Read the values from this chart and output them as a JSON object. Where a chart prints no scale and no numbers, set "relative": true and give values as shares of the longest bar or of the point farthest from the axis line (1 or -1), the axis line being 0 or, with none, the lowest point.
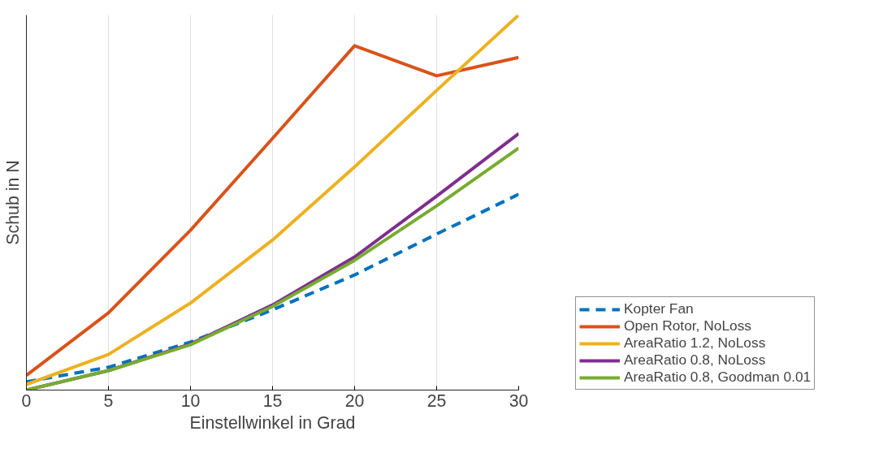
{
  "chart_data": {
    "type": "line",
    "xlabel": "Einstellwinkel in Grad",
    "ylabel": "Schub in N",
    "relative": true,
    "xlim": [
      0,
      30
    ],
    "xticks": [
      0,
      5,
      10,
      15,
      20,
      25,
      30
    ],
    "grid": "x",
    "legend": "right",
    "tick_labels": "x",
    "x": [
      0,
      5,
      10,
      15,
      20,
      25,
      30
    ],
    "series": [
      {
        "name": "Kopter Fan",
        "color": "#0072bd",
        "line_style": "dashed",
        "values": [
          0.022,
          0.061,
          0.128,
          0.214,
          0.307,
          0.416,
          0.522
        ]
      },
      {
        "name": "Open Rotor, NoLoss",
        "color": "#d95319",
        "line_style": "solid",
        "values": [
          0.039,
          0.206,
          0.426,
          0.671,
          0.918,
          0.838,
          0.887
        ]
      },
      {
        "name": "AreaRatio 1.2, NoLoss",
        "color": "#edb120",
        "line_style": "solid",
        "values": [
          0.015,
          0.095,
          0.232,
          0.4,
          0.595,
          0.799,
          1.0
        ]
      },
      {
        "name": "AreaRatio 0.8, NoLoss",
        "color": "#7e2f8e",
        "line_style": "solid",
        "values": [
          0,
          0.052,
          0.123,
          0.227,
          0.355,
          0.517,
          0.684
        ]
      },
      {
        "name": "AreaRatio 0.8, Goodman 0.01",
        "color": "#77ac30",
        "line_style": "solid",
        "values": [
          0,
          0.052,
          0.121,
          0.223,
          0.346,
          0.491,
          0.645
        ]
      }
    ]
  }
}
